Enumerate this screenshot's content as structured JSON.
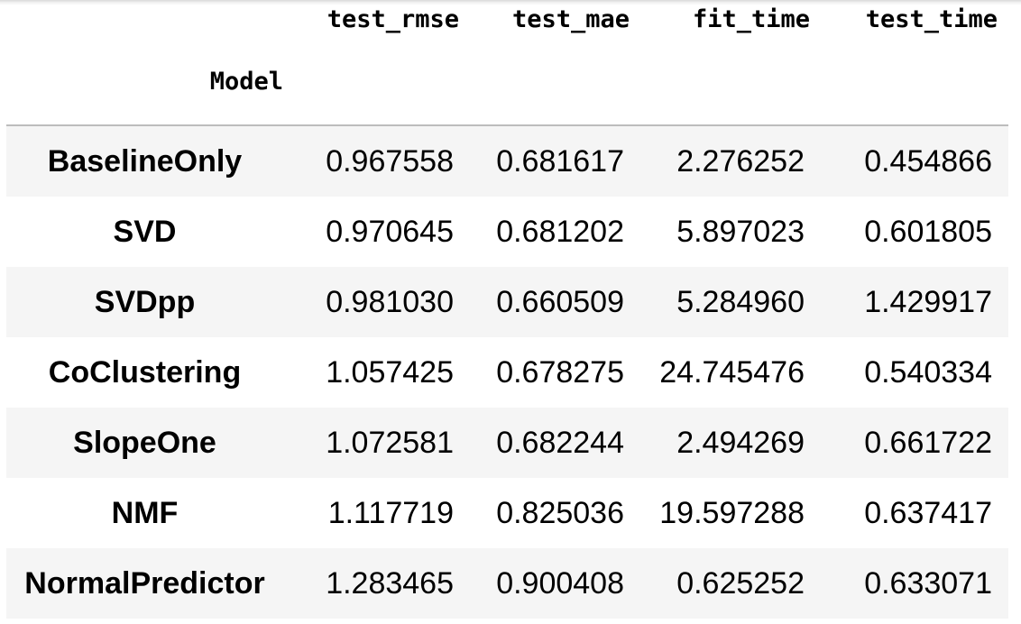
{
  "table": {
    "index_name": "Model",
    "columns": [
      "test_rmse",
      "test_mae",
      "fit_time",
      "test_time"
    ],
    "rows": [
      {
        "model": "BaselineOnly",
        "values": [
          "0.967558",
          "0.681617",
          "2.276252",
          "0.454866"
        ]
      },
      {
        "model": "SVD",
        "values": [
          "0.970645",
          "0.681202",
          "5.897023",
          "0.601805"
        ]
      },
      {
        "model": "SVDpp",
        "values": [
          "0.981030",
          "0.660509",
          "5.284960",
          "1.429917"
        ]
      },
      {
        "model": "CoClustering",
        "values": [
          "1.057425",
          "0.678275",
          "24.745476",
          "0.540334"
        ]
      },
      {
        "model": "SlopeOne",
        "values": [
          "1.072581",
          "0.682244",
          "2.494269",
          "0.661722"
        ]
      },
      {
        "model": "NMF",
        "values": [
          "1.117719",
          "0.825036",
          "19.597288",
          "0.637417"
        ]
      },
      {
        "model": "NormalPredictor",
        "values": [
          "1.283465",
          "0.900408",
          "0.625252",
          "0.633071"
        ]
      }
    ]
  },
  "colors": {
    "stripe": "#f5f5f5",
    "header_rule": "#bdbdbd",
    "text": "#000000"
  }
}
